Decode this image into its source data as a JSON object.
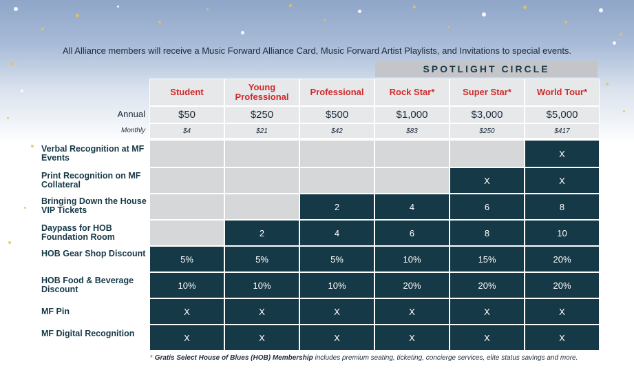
{
  "intro": "All Alliance members will receive a Music Forward Alliance Card, Music Forward Artist Playlists, and Invitations to special events.",
  "spotlight_label": "SPOTLIGHT CIRCLE",
  "tiers": [
    "Student",
    "Young Professional",
    "Professional",
    "Rock Star*",
    "Super Star*",
    "World Tour*"
  ],
  "annual_label": "Annual",
  "monthly_label": "Monthly",
  "annual": [
    "$50",
    "$250",
    "$500",
    "$1,000",
    "$3,000",
    "$5,000"
  ],
  "monthly": [
    "$4",
    "$21",
    "$42",
    "$83",
    "$250",
    "$417"
  ],
  "rows": [
    {
      "label": "Verbal Recognition at MF Events",
      "values": [
        "",
        "",
        "",
        "",
        "",
        "X"
      ]
    },
    {
      "label": "Print Recognition on MF Collateral",
      "values": [
        "",
        "",
        "",
        "",
        "X",
        "X"
      ]
    },
    {
      "label": "Bringing Down the House VIP Tickets",
      "values": [
        "",
        "",
        "2",
        "4",
        "6",
        "8"
      ]
    },
    {
      "label": "Daypass for HOB Foundation Room",
      "values": [
        "",
        "2",
        "4",
        "6",
        "8",
        "10"
      ]
    },
    {
      "label": "HOB Gear Shop Discount",
      "values": [
        "5%",
        "5%",
        "5%",
        "10%",
        "15%",
        "20%"
      ]
    },
    {
      "label": "HOB Food & Beverage Discount",
      "values": [
        "10%",
        "10%",
        "10%",
        "20%",
        "20%",
        "20%"
      ]
    },
    {
      "label": "MF Pin",
      "values": [
        "X",
        "X",
        "X",
        "X",
        "X",
        "X"
      ]
    },
    {
      "label": "MF Digital Recognition",
      "values": [
        "X",
        "X",
        "X",
        "X",
        "X",
        "X"
      ]
    }
  ],
  "footnote": {
    "star": "*",
    "bold": "Gratis Select House of Blues (HOB) Membership",
    "rest": " includes premium seating, ticketing, concierge services, elite status savings and more."
  },
  "colors": {
    "accent_red": "#d02a2a",
    "dark_teal": "#163947",
    "light_gray": "#d6d7d9",
    "header_gray": "#e6e8ea"
  }
}
